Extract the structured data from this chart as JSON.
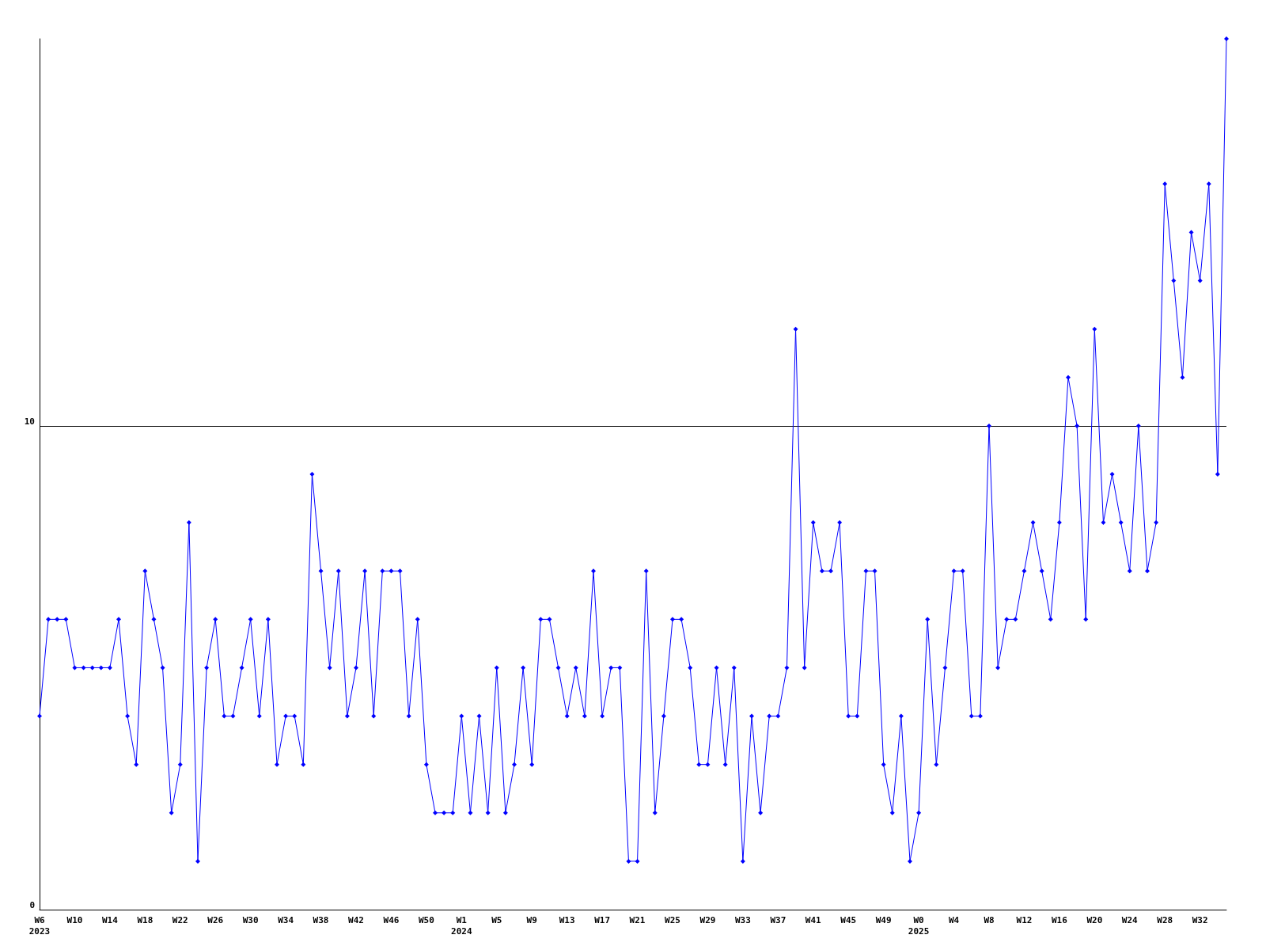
{
  "chart_data": {
    "type": "line",
    "categories": [
      "W6\n2023",
      null,
      null,
      null,
      "W10",
      null,
      null,
      null,
      "W14",
      null,
      null,
      null,
      "W18",
      null,
      null,
      null,
      "W22",
      null,
      null,
      null,
      "W26",
      null,
      null,
      null,
      "W30",
      null,
      null,
      null,
      "W34",
      null,
      null,
      null,
      "W38",
      null,
      null,
      null,
      "W42",
      null,
      null,
      null,
      "W46",
      null,
      null,
      null,
      "W50",
      null,
      null,
      null,
      "W1\n2024",
      null,
      null,
      null,
      "W5",
      null,
      null,
      null,
      "W9",
      null,
      null,
      null,
      "W13",
      null,
      null,
      null,
      "W17",
      null,
      null,
      null,
      "W21",
      null,
      null,
      null,
      "W25",
      null,
      null,
      null,
      "W29",
      null,
      null,
      null,
      "W33",
      null,
      null,
      null,
      "W37",
      null,
      null,
      null,
      "W41",
      null,
      null,
      null,
      "W45",
      null,
      null,
      null,
      "W49",
      null,
      null,
      null,
      "W0\n2025",
      null,
      null,
      null,
      "W4",
      null,
      null,
      null,
      "W8",
      null,
      null,
      null,
      "W12",
      null,
      null,
      null,
      "W16",
      null,
      null,
      null,
      "W20",
      null,
      null,
      null,
      "W24",
      null,
      null,
      null,
      "W28",
      null,
      null,
      null,
      "W32",
      null,
      null,
      null
    ],
    "series": [
      {
        "color": "#0000ff",
        "values": [
          4,
          6,
          6,
          6,
          5,
          5,
          5,
          5,
          5,
          6,
          4,
          3,
          7,
          6,
          5,
          2,
          3,
          8,
          1,
          5,
          6,
          4,
          4,
          5,
          6,
          4,
          6,
          3,
          4,
          4,
          3,
          9,
          7,
          5,
          7,
          4,
          5,
          7,
          4,
          7,
          7,
          7,
          4,
          6,
          3,
          2,
          2,
          2,
          4,
          2,
          4,
          2,
          5,
          2,
          3,
          5,
          3,
          6,
          6,
          5,
          4,
          5,
          4,
          7,
          4,
          5,
          5,
          1,
          1,
          7,
          2,
          4,
          6,
          6,
          5,
          3,
          3,
          5,
          3,
          5,
          1,
          4,
          2,
          4,
          4,
          5,
          12,
          5,
          8,
          7,
          7,
          8,
          4,
          4,
          7,
          7,
          3,
          2,
          4,
          1,
          2,
          6,
          3,
          5,
          7,
          7,
          4,
          4,
          10,
          5,
          6,
          6,
          7,
          8,
          7,
          6,
          8,
          11,
          10,
          6,
          12,
          8,
          9,
          8,
          7,
          10,
          7,
          8,
          15,
          13,
          11,
          14,
          13,
          15,
          9,
          18
        ]
      }
    ],
    "ylim": [
      0,
      18
    ],
    "yticks": [
      0,
      10
    ],
    "grid": "y",
    "marker": "diamond",
    "line_style": "solid"
  }
}
